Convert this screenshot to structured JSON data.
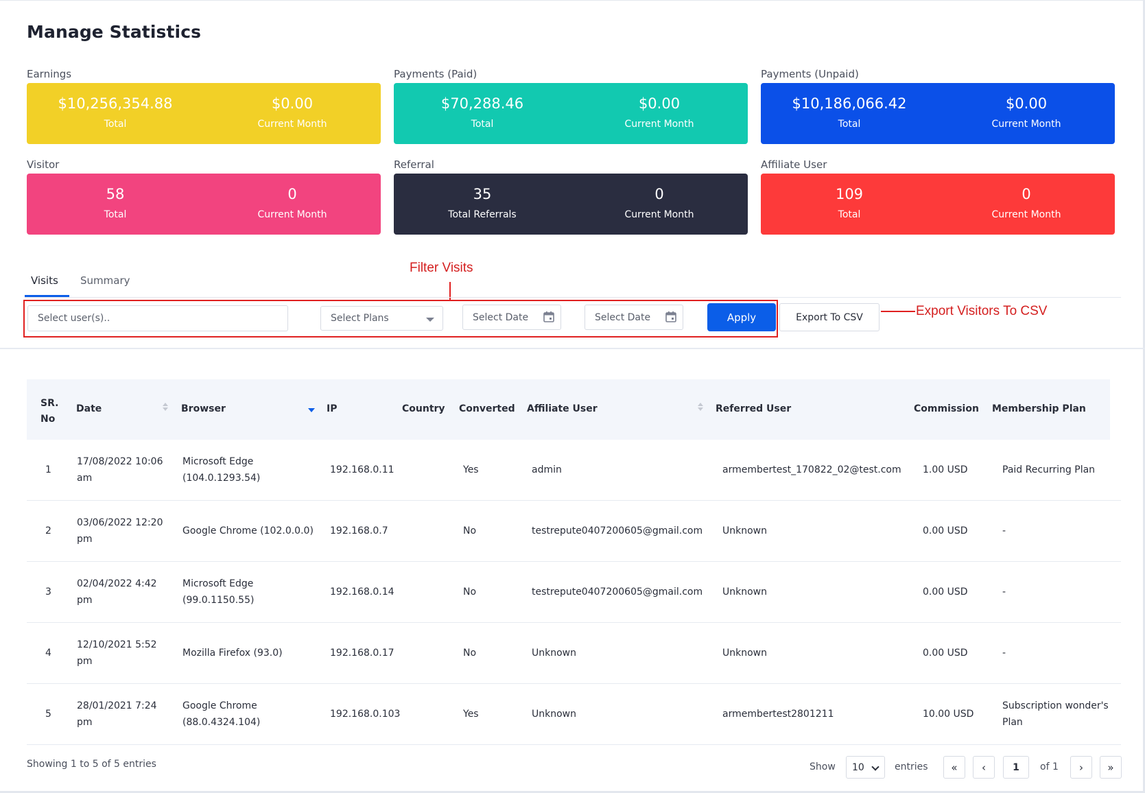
{
  "page": {
    "title": "Manage Statistics"
  },
  "colors": {
    "earnings": "#f2d027",
    "payments_paid": "#12c9b0",
    "payments_unpaid": "#0b50e8",
    "visitor": "#f2447f",
    "referral": "#2a2d40",
    "affiliate_user": "#fd3a3a",
    "primary": "#0b5ee8",
    "annotation": "#d41f1f"
  },
  "stats": [
    {
      "label": "Earnings",
      "total": "$10,256,354.88",
      "total_caption": "Total",
      "current": "$0.00",
      "current_caption": "Current Month"
    },
    {
      "label": "Payments (Paid)",
      "total": "$70,288.46",
      "total_caption": "Total",
      "current": "$0.00",
      "current_caption": "Current Month"
    },
    {
      "label": "Payments (Unpaid)",
      "total": "$10,186,066.42",
      "total_caption": "Total",
      "current": "$0.00",
      "current_caption": "Current Month"
    },
    {
      "label": "Visitor",
      "total": "58",
      "total_caption": "Total",
      "current": "0",
      "current_caption": "Current Month"
    },
    {
      "label": "Referral",
      "total": "35",
      "total_caption": "Total Referrals",
      "current": "0",
      "current_caption": "Current Month"
    },
    {
      "label": "Affiliate User",
      "total": "109",
      "total_caption": "Total",
      "current": "0",
      "current_caption": "Current Month"
    }
  ],
  "tabs": [
    {
      "label": "Visits",
      "active": true
    },
    {
      "label": "Summary",
      "active": false
    }
  ],
  "annotations": {
    "filter": "Filter Visits",
    "export": "Export Visitors To CSV"
  },
  "filters": {
    "users_placeholder": "Select user(s)..",
    "plans_placeholder": "Select Plans",
    "date_from_placeholder": "Select Date",
    "date_to_placeholder": "Select Date",
    "apply_label": "Apply",
    "export_label": "Export To CSV"
  },
  "table": {
    "headers": {
      "sr_line1": "SR.",
      "sr_line2": "No",
      "date": "Date",
      "browser": "Browser",
      "ip": "IP",
      "country": "Country",
      "converted": "Converted",
      "affiliate_user": "Affiliate User",
      "referred_user": "Referred User",
      "commission": "Commission",
      "membership_plan": "Membership Plan"
    },
    "rows": [
      {
        "sr": "1",
        "date": "17/08/2022 10:06 am",
        "browser": "Microsoft Edge (104.0.1293.54)",
        "ip": "192.168.0.11",
        "country": "",
        "converted": "Yes",
        "affiliate": "admin",
        "referred": "armembertest_170822_02@test.com",
        "commission": "1.00 USD",
        "plan": "Paid Recurring Plan"
      },
      {
        "sr": "2",
        "date": "03/06/2022 12:20 pm",
        "browser": "Google Chrome (102.0.0.0)",
        "ip": "192.168.0.7",
        "country": "",
        "converted": "No",
        "affiliate": "testrepute0407200605@gmail.com",
        "referred": "Unknown",
        "commission": "0.00 USD",
        "plan": "-"
      },
      {
        "sr": "3",
        "date": "02/04/2022 4:42 pm",
        "browser": "Microsoft Edge (99.0.1150.55)",
        "ip": "192.168.0.14",
        "country": "",
        "converted": "No",
        "affiliate": "testrepute0407200605@gmail.com",
        "referred": "Unknown",
        "commission": "0.00 USD",
        "plan": "-"
      },
      {
        "sr": "4",
        "date": "12/10/2021 5:52 pm",
        "browser": "Mozilla Firefox (93.0)",
        "ip": "192.168.0.17",
        "country": "",
        "converted": "No",
        "affiliate": "Unknown",
        "referred": "Unknown",
        "commission": "0.00 USD",
        "plan": "-"
      },
      {
        "sr": "5",
        "date": "28/01/2021 7:24 pm",
        "browser": "Google Chrome (88.0.4324.104)",
        "ip": "192.168.0.103",
        "country": "",
        "converted": "Yes",
        "affiliate": "Unknown",
        "referred": "armembertest2801211",
        "commission": "10.00 USD",
        "plan": "Subscription wonder's Plan"
      }
    ]
  },
  "footer": {
    "showing": "Showing 1 to 5 of 5 entries",
    "show_label": "Show",
    "page_size": "10",
    "entries_label": "entries",
    "first": "«",
    "prev": "‹",
    "current_page": "1",
    "of_label": "of 1",
    "next": "›",
    "last": "»"
  }
}
